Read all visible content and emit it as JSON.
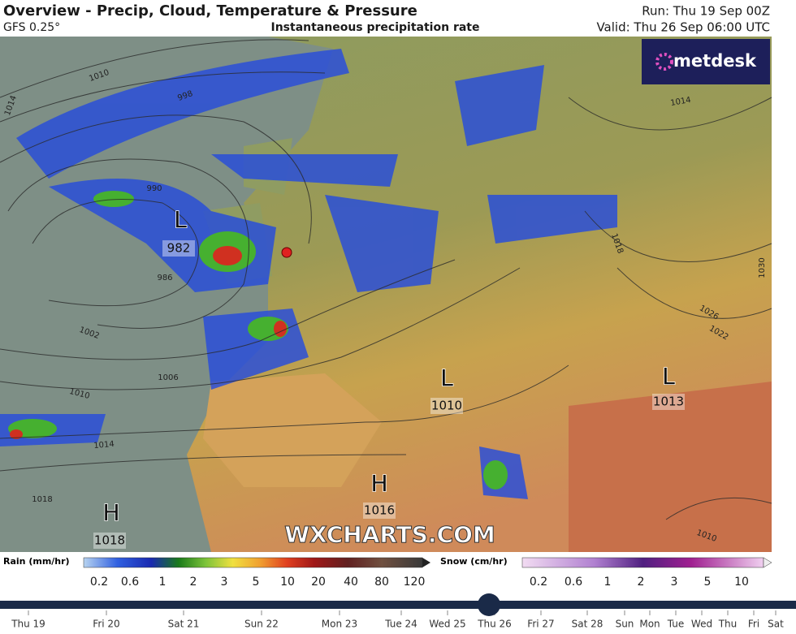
{
  "header": {
    "title": "Overview - Precip, Cloud, Temperature & Pressure",
    "model": "GFS 0.25°",
    "product": "Instantaneous precipitation rate",
    "run": "Run: Thu 19 Sep 00Z",
    "valid": "Valid: Thu 26 Sep 06:00 UTC"
  },
  "logo": "metdesk",
  "watermark": "WXCHARTS.COM",
  "pressure_centres": [
    {
      "type": "L",
      "value": "982"
    },
    {
      "type": "L",
      "value": "1010"
    },
    {
      "type": "L",
      "value": "1013"
    },
    {
      "type": "H",
      "value": "1016"
    },
    {
      "type": "H",
      "value": "1018"
    }
  ],
  "isobar_labels": [
    "1010",
    "1014",
    "998",
    "990",
    "986",
    "1002",
    "1006",
    "1010",
    "1014",
    "1018",
    "1014",
    "1018",
    "1026",
    "1022",
    "1030",
    "1010"
  ],
  "legends": {
    "rain": {
      "title": "Rain (mm/hr)",
      "ticks": [
        "0.2",
        "0.6",
        "1",
        "2",
        "3",
        "5",
        "10",
        "20",
        "40",
        "80",
        "120"
      ]
    },
    "snow": {
      "title": "Snow (cm/hr)",
      "ticks": [
        "0.2",
        "0.6",
        "1",
        "2",
        "3",
        "5",
        "10"
      ]
    }
  },
  "timeline": {
    "labels": [
      "Thu 19",
      "Fri 20",
      "Sat 21",
      "Sun 22",
      "Mon 23",
      "Tue 24",
      "Wed 25",
      "Thu 26",
      "Fri 27",
      "Sat 28",
      "Sun",
      "Mon",
      "Tue",
      "Wed",
      "Thu",
      "Fri",
      "Sat"
    ]
  }
}
